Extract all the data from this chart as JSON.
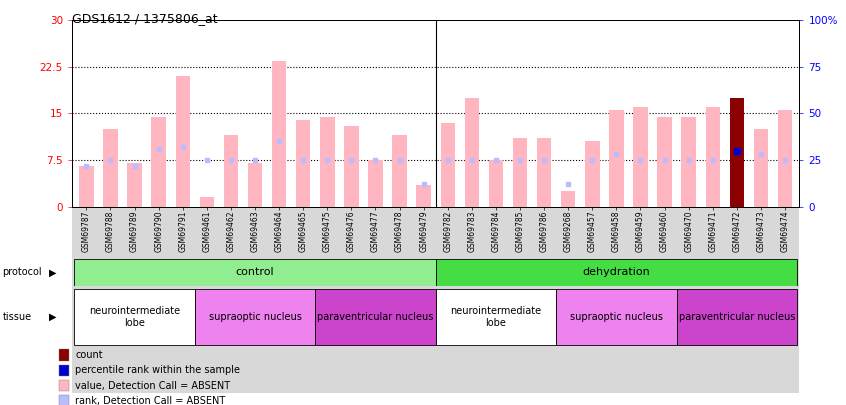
{
  "title": "GDS1612 / 1375806_at",
  "samples": [
    "GSM69787",
    "GSM69788",
    "GSM69789",
    "GSM69790",
    "GSM69791",
    "GSM69461",
    "GSM69462",
    "GSM69463",
    "GSM69464",
    "GSM69465",
    "GSM69475",
    "GSM69476",
    "GSM69477",
    "GSM69478",
    "GSM69479",
    "GSM69782",
    "GSM69783",
    "GSM69784",
    "GSM69785",
    "GSM69786",
    "GSM69268",
    "GSM69457",
    "GSM69458",
    "GSM69459",
    "GSM69460",
    "GSM69470",
    "GSM69471",
    "GSM69472",
    "GSM69473",
    "GSM69474"
  ],
  "values": [
    6.5,
    12.5,
    7.0,
    14.5,
    21.0,
    1.5,
    11.5,
    7.0,
    23.5,
    14.0,
    14.5,
    13.0,
    7.5,
    11.5,
    3.5,
    13.5,
    17.5,
    7.5,
    11.0,
    11.0,
    2.5,
    10.5,
    15.5,
    16.0,
    14.5,
    14.5,
    16.0,
    17.5,
    12.5,
    15.5
  ],
  "rank_percent": [
    22,
    25,
    22,
    31,
    32,
    25,
    25,
    25,
    35,
    25,
    25,
    25,
    25,
    25,
    12,
    25,
    25,
    25,
    25,
    25,
    12,
    25,
    28,
    25,
    25,
    25,
    25,
    30,
    28,
    25
  ],
  "is_dark_red": [
    false,
    false,
    false,
    false,
    false,
    false,
    false,
    false,
    false,
    false,
    false,
    false,
    false,
    false,
    false,
    false,
    false,
    false,
    false,
    false,
    false,
    false,
    false,
    false,
    false,
    false,
    false,
    true,
    false,
    false
  ],
  "is_blue_dark": [
    false,
    false,
    false,
    false,
    false,
    false,
    false,
    false,
    false,
    false,
    false,
    false,
    false,
    false,
    false,
    false,
    false,
    false,
    false,
    false,
    false,
    false,
    false,
    false,
    false,
    false,
    false,
    true,
    false,
    false
  ],
  "ylim_left": [
    0,
    30
  ],
  "ylim_right": [
    0,
    100
  ],
  "yticks_left": [
    0,
    7.5,
    15,
    22.5,
    30
  ],
  "ytick_labels_left": [
    "0",
    "7.5",
    "15",
    "22.5",
    "30"
  ],
  "yticks_right": [
    0,
    25,
    50,
    75,
    100
  ],
  "ytick_labels_right": [
    "0",
    "25",
    "50",
    "75",
    "100%"
  ],
  "dotted_lines": [
    7.5,
    15,
    22.5
  ],
  "bar_color_pink": "#FFB6C1",
  "bar_color_dark_red": "#8B0000",
  "rank_color_light": "#BBBBFF",
  "rank_color_dark": "#0000CC",
  "xtick_bg_color": "#D8D8D8",
  "protocol_groups": [
    {
      "label": "control",
      "start": 0,
      "end": 14,
      "color": "#90EE90"
    },
    {
      "label": "dehydration",
      "start": 15,
      "end": 29,
      "color": "#44DD44"
    }
  ],
  "tissue_groups": [
    {
      "label": "neurointermediate\nlobe",
      "start": 0,
      "end": 4,
      "color": "#FFFFFF"
    },
    {
      "label": "supraoptic nucleus",
      "start": 5,
      "end": 9,
      "color": "#EE82EE"
    },
    {
      "label": "paraventricular nucleus",
      "start": 10,
      "end": 14,
      "color": "#CC44CC"
    },
    {
      "label": "neurointermediate\nlobe",
      "start": 15,
      "end": 19,
      "color": "#FFFFFF"
    },
    {
      "label": "supraoptic nucleus",
      "start": 20,
      "end": 24,
      "color": "#EE82EE"
    },
    {
      "label": "paraventricular nucleus",
      "start": 25,
      "end": 29,
      "color": "#CC44CC"
    }
  ],
  "legend_items": [
    {
      "label": "count",
      "color": "#8B0000"
    },
    {
      "label": "percentile rank within the sample",
      "color": "#0000CC"
    },
    {
      "label": "value, Detection Call = ABSENT",
      "color": "#FFB6C1"
    },
    {
      "label": "rank, Detection Call = ABSENT",
      "color": "#BBBBFF"
    }
  ]
}
